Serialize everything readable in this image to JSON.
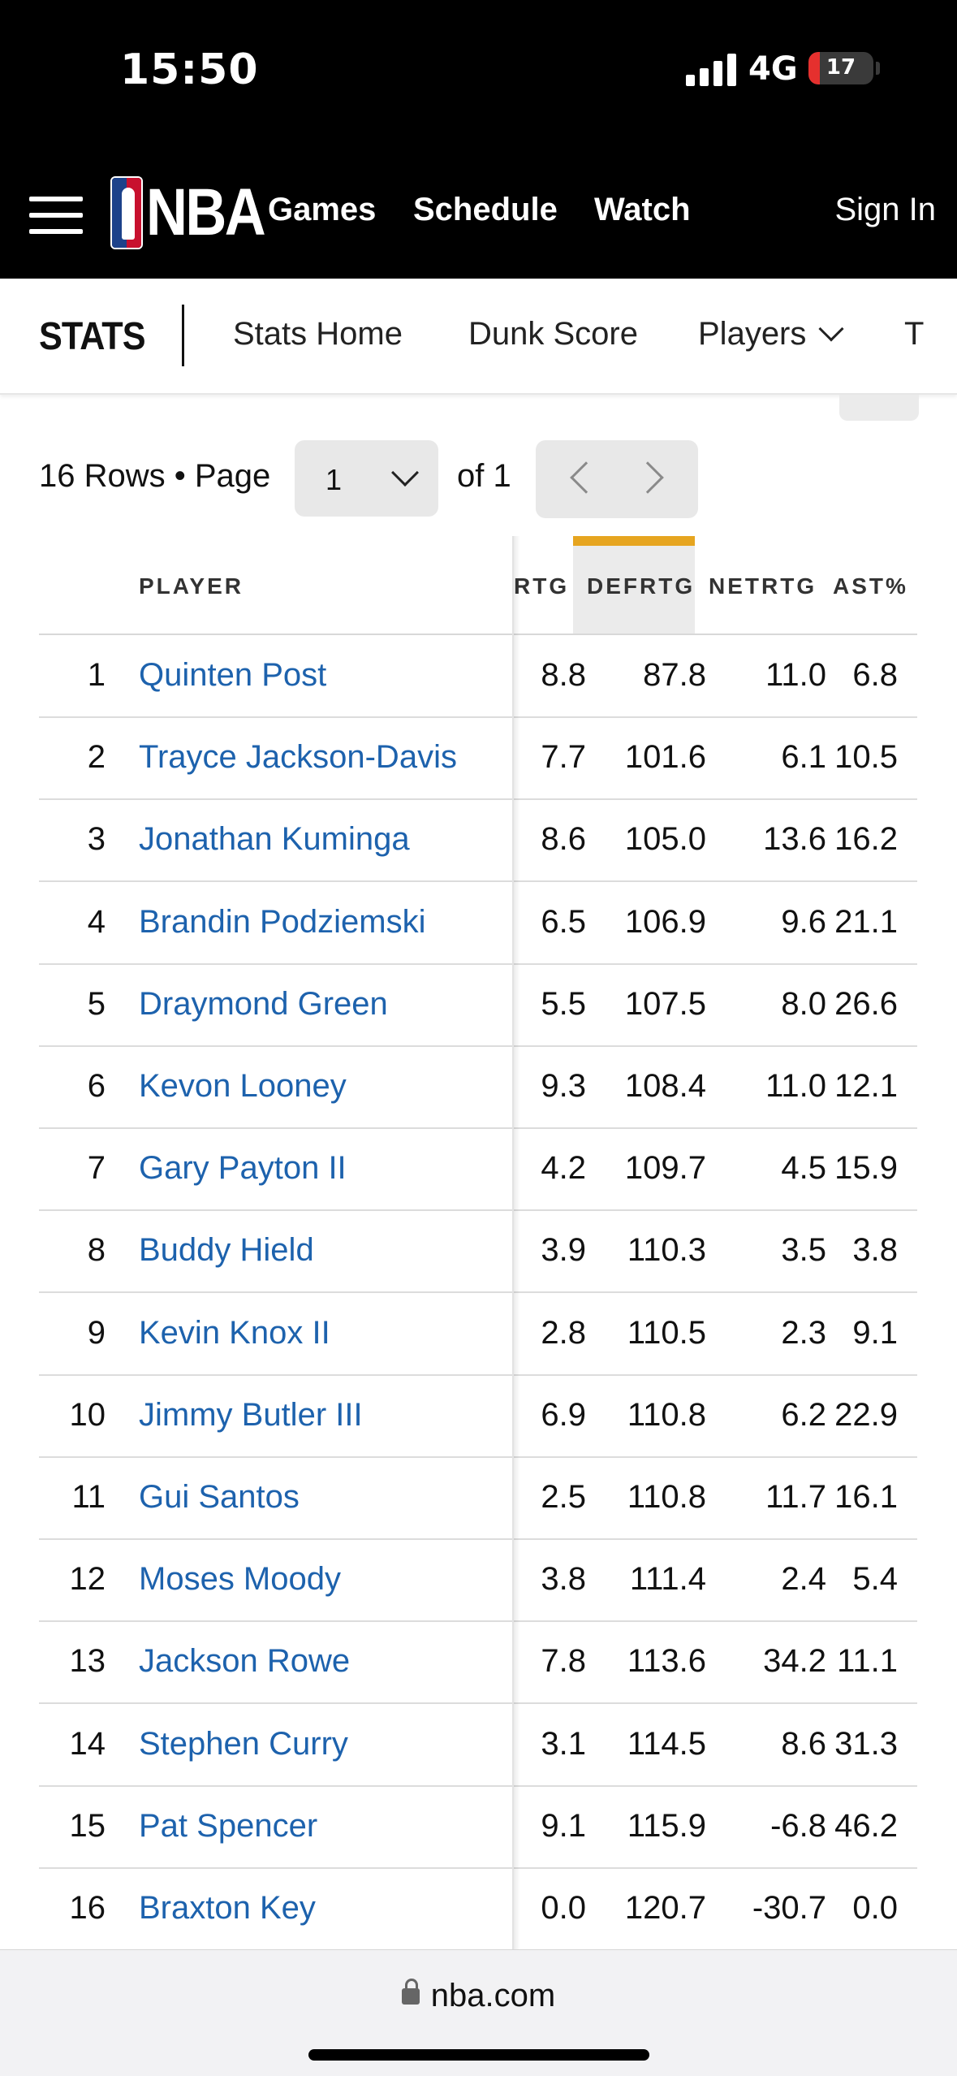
{
  "status": {
    "time": "15:50",
    "network": "4G",
    "battery": "17",
    "battery_level": 0.17
  },
  "nav": {
    "logo": "NBA",
    "links": [
      "Games",
      "Schedule",
      "Watch"
    ],
    "sign_in": "Sign In"
  },
  "stats_nav": {
    "title": "STATS",
    "links": [
      "Stats Home",
      "Dunk Score",
      "Players",
      "T"
    ]
  },
  "pagination": {
    "rows_label": "16 Rows • Page",
    "page": "1",
    "of_label": "of 1"
  },
  "table": {
    "columns": [
      "PLAYER",
      "RTG",
      "DEFRTG",
      "NETRTG",
      "AST%"
    ],
    "rows": [
      {
        "rank": "1",
        "player": "Quinten Post",
        "offrtg": "8.8",
        "defrtg": "87.8",
        "netrtg": "11.0",
        "ast": "6.8"
      },
      {
        "rank": "2",
        "player": "Trayce Jackson-Davis",
        "offrtg": "7.7",
        "defrtg": "101.6",
        "netrtg": "6.1",
        "ast": "10.5"
      },
      {
        "rank": "3",
        "player": "Jonathan Kuminga",
        "offrtg": "8.6",
        "defrtg": "105.0",
        "netrtg": "13.6",
        "ast": "16.2"
      },
      {
        "rank": "4",
        "player": "Brandin Podziemski",
        "offrtg": "6.5",
        "defrtg": "106.9",
        "netrtg": "9.6",
        "ast": "21.1"
      },
      {
        "rank": "5",
        "player": "Draymond Green",
        "offrtg": "5.5",
        "defrtg": "107.5",
        "netrtg": "8.0",
        "ast": "26.6"
      },
      {
        "rank": "6",
        "player": "Kevon Looney",
        "offrtg": "9.3",
        "defrtg": "108.4",
        "netrtg": "11.0",
        "ast": "12.1"
      },
      {
        "rank": "7",
        "player": "Gary Payton II",
        "offrtg": "4.2",
        "defrtg": "109.7",
        "netrtg": "4.5",
        "ast": "15.9"
      },
      {
        "rank": "8",
        "player": "Buddy Hield",
        "offrtg": "3.9",
        "defrtg": "110.3",
        "netrtg": "3.5",
        "ast": "3.8"
      },
      {
        "rank": "9",
        "player": "Kevin Knox II",
        "offrtg": "2.8",
        "defrtg": "110.5",
        "netrtg": "2.3",
        "ast": "9.1"
      },
      {
        "rank": "10",
        "player": "Jimmy Butler III",
        "offrtg": "6.9",
        "defrtg": "110.8",
        "netrtg": "6.2",
        "ast": "22.9"
      },
      {
        "rank": "11",
        "player": "Gui Santos",
        "offrtg": "2.5",
        "defrtg": "110.8",
        "netrtg": "11.7",
        "ast": "16.1"
      },
      {
        "rank": "12",
        "player": "Moses Moody",
        "offrtg": "3.8",
        "defrtg": "111.4",
        "netrtg": "2.4",
        "ast": "5.4"
      },
      {
        "rank": "13",
        "player": "Jackson Rowe",
        "offrtg": "7.8",
        "defrtg": "113.6",
        "netrtg": "34.2",
        "ast": "11.1"
      },
      {
        "rank": "14",
        "player": "Stephen Curry",
        "offrtg": "3.1",
        "defrtg": "114.5",
        "netrtg": "8.6",
        "ast": "31.3"
      },
      {
        "rank": "15",
        "player": "Pat Spencer",
        "offrtg": "9.1",
        "defrtg": "115.9",
        "netrtg": "-6.8",
        "ast": "46.2"
      },
      {
        "rank": "16",
        "player": "Braxton Key",
        "offrtg": "0.0",
        "defrtg": "120.7",
        "netrtg": "-30.7",
        "ast": "0.0"
      }
    ]
  },
  "browser": {
    "url": "nba.com"
  },
  "colors": {
    "link": "#1d62ad",
    "accent": "#e6a520",
    "nav_bg": "#000000",
    "battery": "#e5302e"
  }
}
